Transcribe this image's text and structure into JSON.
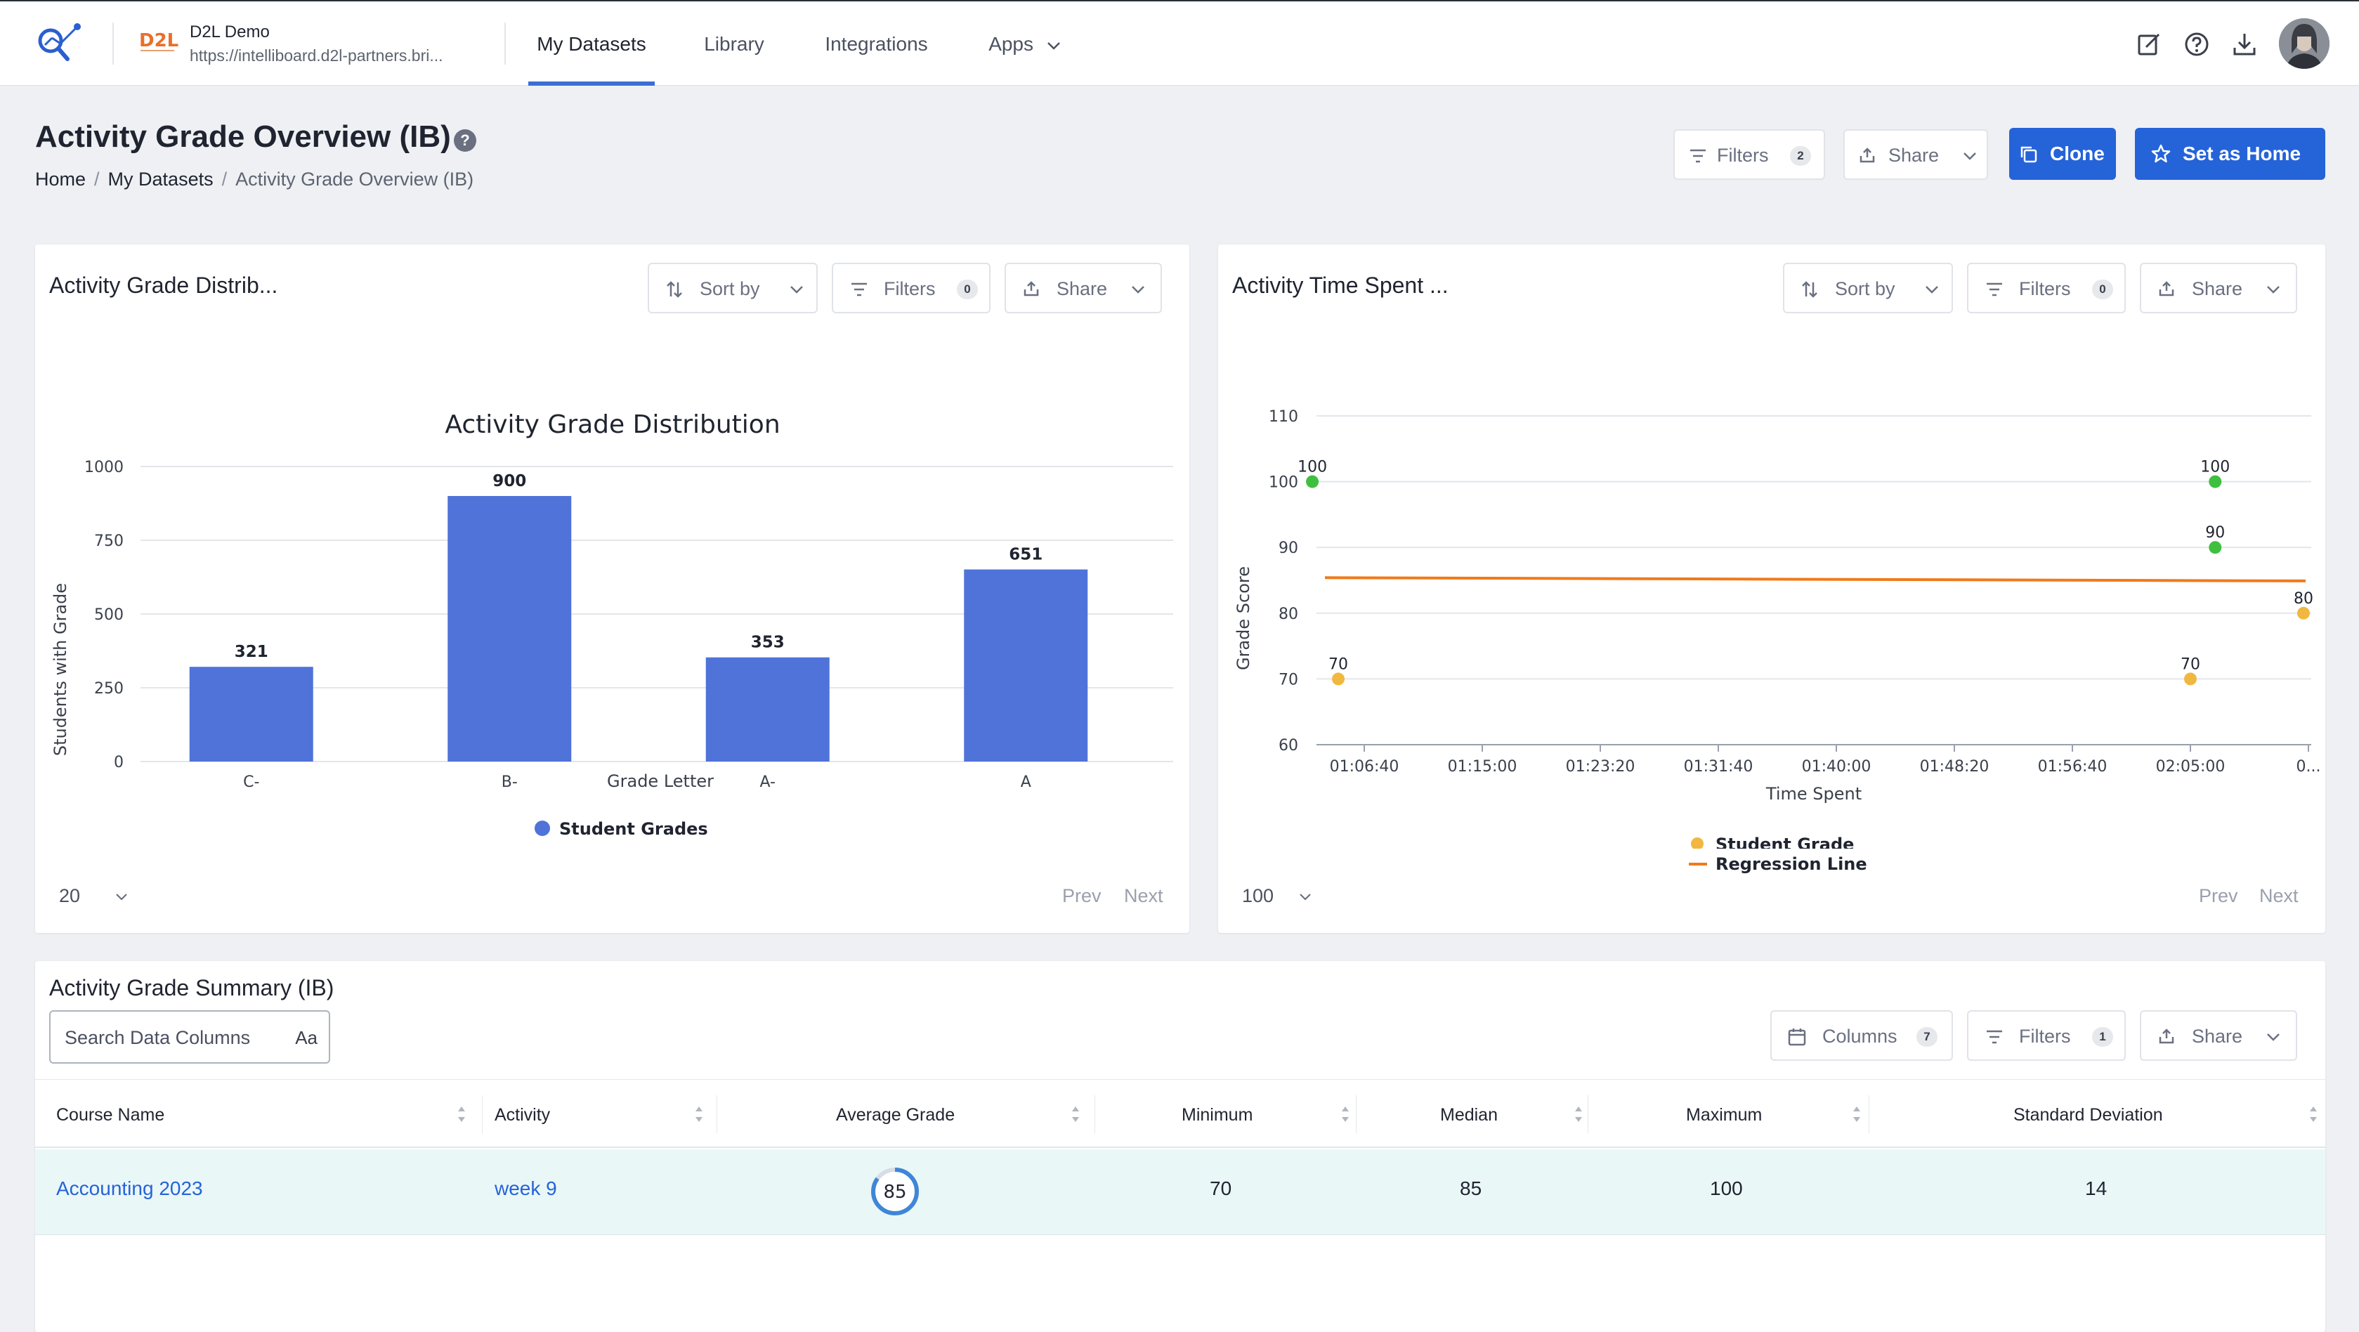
{
  "header": {
    "org_name": "D2L Demo",
    "org_url": "https://intelliboard.d2l-partners.bri...",
    "d2l_logo_text": "D2L",
    "nav": [
      "My Datasets",
      "Library",
      "Integrations",
      "Apps"
    ],
    "active_nav": "My Datasets",
    "icons": [
      "edit-icon",
      "help-circle-icon",
      "download-icon"
    ]
  },
  "page": {
    "title": "Activity Grade Overview (IB)",
    "help_glyph": "?",
    "breadcrumb": [
      "Home",
      "My Datasets",
      "Activity Grade Overview (IB)"
    ],
    "actions": {
      "filters_label": "Filters",
      "filters_count": "2",
      "share_label": "Share",
      "clone_label": "Clone",
      "set_home_label": "Set as Home"
    }
  },
  "widget_left": {
    "title": "Activity Grade Distrib...",
    "sort_label": "Sort by",
    "filters_label": "Filters",
    "filters_count": "0",
    "share_label": "Share",
    "page_size": "20",
    "prev_label": "Prev",
    "next_label": "Next"
  },
  "widget_right": {
    "title": "Activity Time Spent ...",
    "sort_label": "Sort by",
    "filters_label": "Filters",
    "filters_count": "0",
    "share_label": "Share",
    "page_size": "100",
    "prev_label": "Prev",
    "next_label": "Next"
  },
  "chart_data": [
    {
      "type": "bar",
      "title": "Activity Grade Distribution",
      "xlabel": "Grade Letter",
      "ylabel": "Students with Grade",
      "categories": [
        "C-",
        "B-",
        "A-",
        "A"
      ],
      "series": [
        {
          "name": "Student Grades",
          "values": [
            321,
            900,
            353,
            651
          ],
          "color": "#4f73d9"
        }
      ],
      "ylim": [
        0,
        1000
      ],
      "yticks": [
        "0",
        "250",
        "500",
        "750",
        "1000"
      ],
      "grid": true,
      "legend": "bottom"
    },
    {
      "type": "scatter",
      "title": "",
      "xlabel": "Time Spent",
      "ylabel": "Grade Score",
      "xticks": [
        "01:06:40",
        "01:15:00",
        "01:23:20",
        "01:31:40",
        "01:40:00",
        "01:48:20",
        "01:56:40",
        "02:05:00",
        "0..."
      ],
      "ylim": [
        60,
        110
      ],
      "yticks": [
        "60",
        "70",
        "80",
        "90",
        "100",
        "110"
      ],
      "points": [
        {
          "x": "01:03:00",
          "y": 100,
          "color": "#3fbf3f"
        },
        {
          "x": "01:04:50",
          "y": 70,
          "color": "#f0b840"
        },
        {
          "x": "02:06:45",
          "y": 100,
          "color": "#3fbf3f"
        },
        {
          "x": "02:06:45",
          "y": 90,
          "color": "#3fbf3f"
        },
        {
          "x": "02:05:00",
          "y": 70,
          "color": "#f0b840"
        },
        {
          "x": "02:15:30",
          "y": 80,
          "color": "#f0b840"
        }
      ],
      "series": [
        {
          "name": "Student Grade",
          "color": "#f0b840",
          "kind": "points"
        },
        {
          "name": "Regression Line",
          "color": "#f07a1a",
          "kind": "line",
          "from": 85.4,
          "to": 84.9
        }
      ],
      "grid": true,
      "legend": "bottom"
    }
  ],
  "summary": {
    "title": "Activity Grade Summary (IB)",
    "search_placeholder": "Search Data Columns",
    "match_case_label": "Aa",
    "columns_label": "Columns",
    "columns_count": "7",
    "filters_label": "Filters",
    "filters_count": "1",
    "share_label": "Share",
    "headers": [
      "Course Name",
      "Activity",
      "Average Grade",
      "Minimum",
      "Median",
      "Maximum",
      "Standard Deviation"
    ],
    "rows": [
      {
        "course": "Accounting 2023",
        "activity": "week 9",
        "average": "85",
        "average_pct": 85,
        "minimum": "70",
        "median": "85",
        "maximum": "100",
        "std_dev": "14"
      }
    ]
  }
}
